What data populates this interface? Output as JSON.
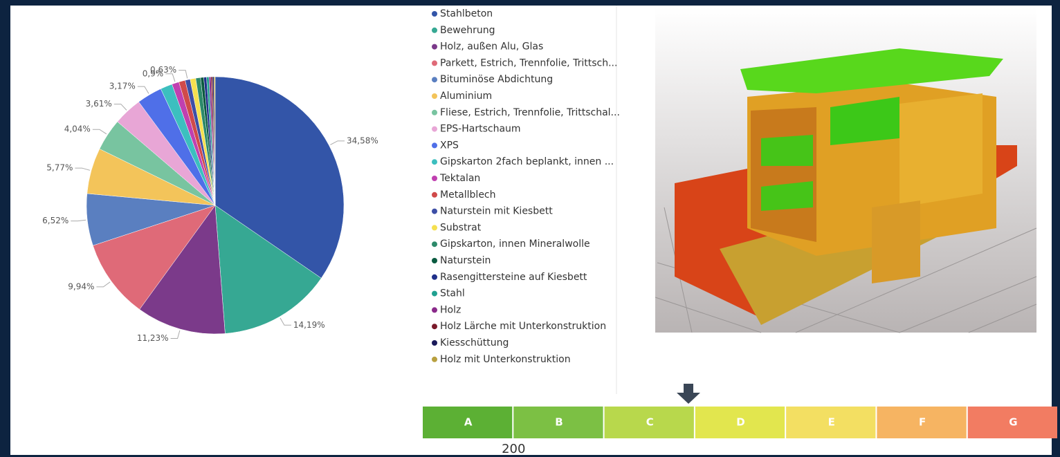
{
  "chart_data": {
    "type": "pie",
    "categories": [
      "Stahlbeton",
      "Bewehrung",
      "Holz, außen Alu, Glas",
      "Parkett, Estrich, Trennfolie, Trittsch...",
      "Bituminöse Abdichtung",
      "Aluminium",
      "Fliese, Estrich, Trennfolie, Trittschal...",
      "EPS-Hartschaum",
      "XPS",
      "Gipskarton 2fach beplankt, innen ...",
      "Tektalan",
      "Metallblech",
      "Naturstein mit Kiesbett",
      "Substrat",
      "Gipskarton, innen Mineralwolle",
      "Naturstein",
      "Rasengittersteine auf Kiesbett",
      "Stahl",
      "Holz",
      "Holz Lärche mit Unterkonstruktion",
      "Kiesschüttung",
      "Holz mit Unterkonstruktion"
    ],
    "values": [
      34.58,
      14.19,
      11.23,
      9.94,
      6.52,
      5.77,
      4.04,
      3.61,
      3.17,
      1.5,
      0.9,
      0.8,
      0.63,
      0.7,
      0.6,
      0.4,
      0.35,
      0.3,
      0.25,
      0.2,
      0.17,
      0.15
    ],
    "value_labels": [
      "34,58%",
      "14,19%",
      "11,23%",
      "9,94%",
      "6,52%",
      "5,77%",
      "4,04%",
      "3,61%",
      "3,17%",
      null,
      "0,9%",
      null,
      "0,63%",
      null,
      null,
      null,
      null,
      null,
      null,
      null,
      null,
      null
    ],
    "colors": [
      "#3355a8",
      "#36a893",
      "#7b3a8a",
      "#df6a78",
      "#5a7fc0",
      "#f3c45a",
      "#78c4a0",
      "#e8a6d6",
      "#4f6fe8",
      "#3cbfbf",
      "#c040b0",
      "#d04a4a",
      "#3d4fa6",
      "#f5e050",
      "#2d8a6a",
      "#0a5a40",
      "#20308a",
      "#20a090",
      "#8a2a8a",
      "#7a1a2a",
      "#1a1a5a",
      "#b8a040"
    ]
  },
  "rating": {
    "classes": [
      "A",
      "B",
      "C",
      "D",
      "E",
      "F",
      "G"
    ],
    "colors": [
      "#5cb034",
      "#7cc044",
      "#b8d84c",
      "#e2e64e",
      "#f3df62",
      "#f6b462",
      "#f27c62"
    ],
    "marker_label": "200"
  }
}
